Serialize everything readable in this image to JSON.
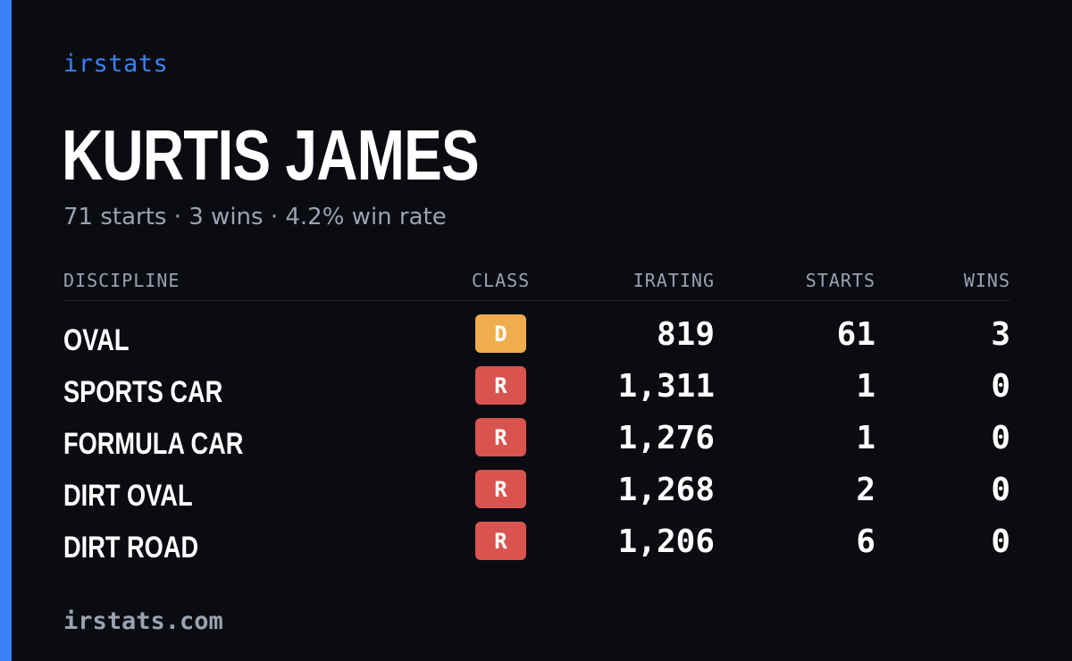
{
  "brand": "irstats",
  "driver": {
    "name": "KURTIS JAMES",
    "summary": "71 starts · 3 wins · 4.2% win rate"
  },
  "table": {
    "headers": {
      "discipline": "DISCIPLINE",
      "class": "CLASS",
      "irating": "IRATING",
      "starts": "STARTS",
      "wins": "WINS"
    },
    "rows": [
      {
        "discipline": "OVAL",
        "class": "D",
        "class_color": "#f0ad4e",
        "irating": "819",
        "starts": "61",
        "wins": "3"
      },
      {
        "discipline": "SPORTS CAR",
        "class": "R",
        "class_color": "#d9534f",
        "irating": "1,311",
        "starts": "1",
        "wins": "0"
      },
      {
        "discipline": "FORMULA CAR",
        "class": "R",
        "class_color": "#d9534f",
        "irating": "1,276",
        "starts": "1",
        "wins": "0"
      },
      {
        "discipline": "DIRT OVAL",
        "class": "R",
        "class_color": "#d9534f",
        "irating": "1,268",
        "starts": "2",
        "wins": "0"
      },
      {
        "discipline": "DIRT ROAD",
        "class": "R",
        "class_color": "#d9534f",
        "irating": "1,206",
        "starts": "6",
        "wins": "0"
      }
    ]
  },
  "footer": "irstats.com",
  "colors": {
    "accent": "#3b82f6",
    "background": "#0a0c12",
    "muted_text": "#9aa3b2"
  }
}
